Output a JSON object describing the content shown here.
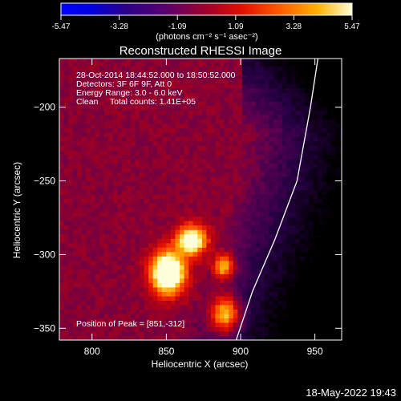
{
  "chart_data": {
    "type": "heatmap",
    "title": "Reconstructed RHESSI Image",
    "xlabel": "Heliocentric X (arcsec)",
    "ylabel": "Heliocentric Y (arcsec)",
    "xlim": [
      778,
      968
    ],
    "ylim": [
      -358,
      -167
    ],
    "x_ticks": [
      800,
      850,
      900,
      950
    ],
    "y_ticks": [
      -200,
      -250,
      -300,
      -350
    ],
    "colorbar": {
      "ticks": [
        "-5.47",
        "-3.28",
        "-1.09",
        "1.09",
        "3.28",
        "5.47"
      ],
      "range": [
        -5.47,
        5.47
      ],
      "unit_label": "(photons cm⁻² s⁻¹ asec⁻²)"
    },
    "info_lines": [
      "28-Oct-2014 18:44:52.000 to 18:50:52.000",
      "Detectors: 3F 6F 9F, Att 0",
      "Energy Range: 3.0 - 6.0 keV",
      "Clean     Total counts: 1.41E+05"
    ],
    "peak_label": "Position of Peak = [851,-312]",
    "footer_timestamp": "18-May-2022 19:43",
    "sources": [
      {
        "x": 851,
        "y": -312,
        "sx": 8,
        "sy": 10,
        "amp": 5.2
      },
      {
        "x": 867,
        "y": -290,
        "sx": 7,
        "sy": 7,
        "amp": 4.2
      },
      {
        "x": 889,
        "y": -308,
        "sx": 5,
        "sy": 6,
        "amp": 3.0
      },
      {
        "x": 890,
        "y": -340,
        "sx": 7,
        "sy": 9,
        "amp": 3.4
      }
    ],
    "background_level": 2.2,
    "limb_curve": [
      [
        952,
        -167
      ],
      [
        947,
        -200
      ],
      [
        938,
        -250
      ],
      [
        923,
        -290
      ],
      [
        908,
        -325
      ],
      [
        897,
        -358
      ]
    ],
    "colors": {
      "limb": "#ffffff",
      "axes": "#ffffff",
      "background": "#000000"
    }
  }
}
